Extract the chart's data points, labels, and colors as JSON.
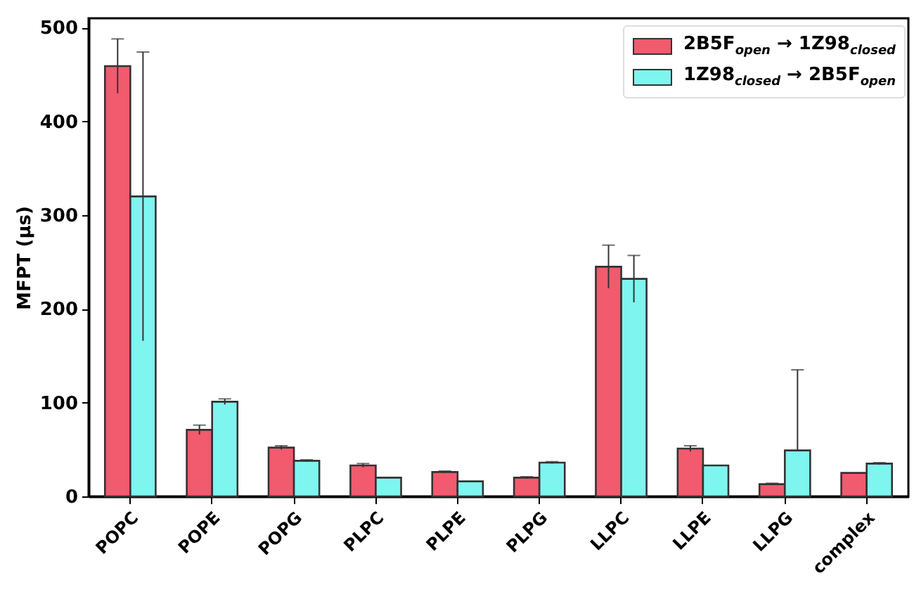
{
  "chart_data": {
    "type": "bar",
    "ylabel": "MFPT (μs)",
    "categories": [
      "POPC",
      "POPE",
      "POPG",
      "PLPC",
      "PLPE",
      "PLPG",
      "LLPC",
      "LLPE",
      "LLPG",
      "complex"
    ],
    "series": [
      {
        "name": "2B5F$_{open}$ → 1Z98$_{closed}$",
        "color": "#f25a6e",
        "values": [
          459,
          71,
          52,
          33,
          26,
          20,
          245,
          51,
          13,
          25
        ],
        "errors": [
          29,
          5,
          2,
          2,
          1,
          1,
          23,
          3,
          1,
          null
        ]
      },
      {
        "name": "1Z98$_{closed}$ → 2B5F$_{open}$",
        "color": "#7ff5f0",
        "values": [
          320,
          101,
          38,
          20,
          16,
          36,
          232,
          33,
          49,
          35
        ],
        "errors": [
          154,
          3,
          1,
          null,
          null,
          1,
          25,
          null,
          [
            49,
            135
          ],
          1
        ]
      }
    ],
    "ylim": [
      0,
      510
    ],
    "yticks": [
      0,
      100,
      200,
      300,
      400,
      500
    ],
    "legend": "top right"
  }
}
